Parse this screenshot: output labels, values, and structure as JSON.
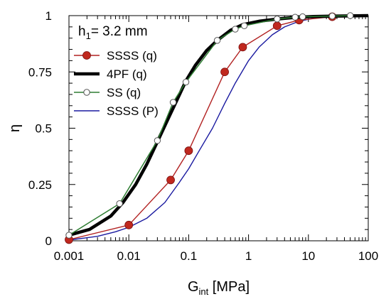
{
  "chart_data": {
    "type": "line",
    "annotation": {
      "main": "h",
      "sub": "1",
      "rest": "= 3.2 mm"
    },
    "xlabel": {
      "main": "G",
      "sub": "int",
      "rest": "  [MPa]"
    },
    "ylabel": "η",
    "x_scale": "log",
    "xlim": [
      0.001,
      100
    ],
    "ylim": [
      0,
      1
    ],
    "x_ticks": [
      0.001,
      0.01,
      0.1,
      1,
      10,
      100
    ],
    "x_tick_labels": [
      "0.001",
      "0.01",
      "0.1",
      "1",
      "10",
      "100"
    ],
    "y_ticks": [
      0,
      0.25,
      0.5,
      0.75,
      1
    ],
    "y_tick_labels": [
      "0",
      "0.25",
      "0.5",
      "0.75",
      "1"
    ],
    "legend_position": "top-left",
    "series": [
      {
        "name": "SSSS (q)",
        "color": "#b22222",
        "marker": "filled-circle",
        "marker_color": "#c0281e",
        "x": [
          0.001,
          0.01,
          0.05,
          0.1,
          0.4,
          0.8,
          3,
          7,
          25
        ],
        "y": [
          0.005,
          0.07,
          0.27,
          0.4,
          0.75,
          0.86,
          0.955,
          0.98,
          0.995
        ]
      },
      {
        "name": "4PF (q)",
        "color": "#000000",
        "marker": "none",
        "x": [
          0.001,
          0.0022,
          0.005,
          0.008,
          0.013,
          0.02,
          0.03,
          0.045,
          0.06,
          0.09,
          0.13,
          0.2,
          0.3,
          0.5,
          0.8,
          1.5,
          3,
          6,
          12,
          30,
          100
        ],
        "y": [
          0.025,
          0.05,
          0.11,
          0.17,
          0.25,
          0.34,
          0.44,
          0.54,
          0.61,
          0.71,
          0.78,
          0.845,
          0.89,
          0.935,
          0.96,
          0.975,
          0.985,
          0.992,
          0.996,
          0.998,
          1.0
        ]
      },
      {
        "name": "SS (q)",
        "color": "#2e7d32",
        "marker": "open-circle",
        "marker_color": "#ffffff",
        "x": [
          0.001,
          0.007,
          0.03,
          0.055,
          0.09,
          0.3,
          0.6,
          0.85,
          3,
          6,
          8,
          25,
          50
        ],
        "y": [
          0.025,
          0.165,
          0.445,
          0.615,
          0.705,
          0.89,
          0.94,
          0.955,
          0.985,
          0.993,
          0.995,
          0.998,
          1.0
        ]
      },
      {
        "name": "SSSS (P)",
        "color": "#1a1aa0",
        "marker": "none",
        "x": [
          0.001,
          0.003,
          0.006,
          0.01,
          0.02,
          0.04,
          0.07,
          0.1,
          0.15,
          0.25,
          0.4,
          0.6,
          1,
          1.5,
          2.5,
          4,
          7,
          12,
          25,
          50,
          100
        ],
        "y": [
          0.003,
          0.02,
          0.04,
          0.06,
          0.1,
          0.17,
          0.26,
          0.32,
          0.4,
          0.5,
          0.61,
          0.7,
          0.8,
          0.86,
          0.915,
          0.95,
          0.975,
          0.988,
          0.995,
          0.998,
          1.0
        ]
      }
    ]
  }
}
